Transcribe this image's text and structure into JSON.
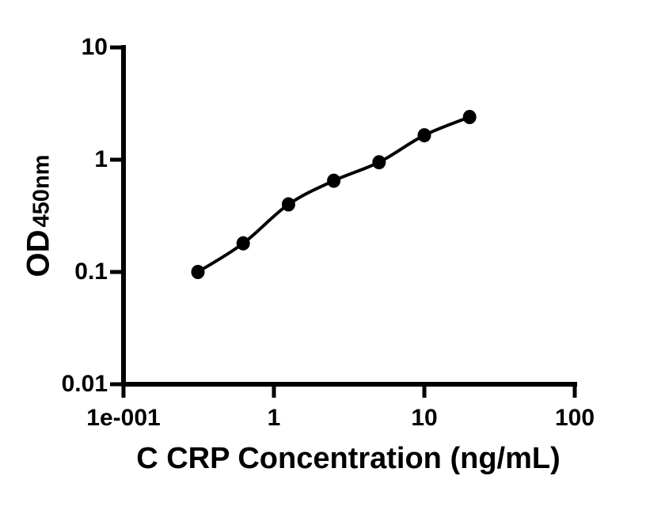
{
  "figure": {
    "background_color": "#ffffff",
    "foreground_color": "#000000"
  },
  "chart_data": {
    "type": "scatter",
    "title": "",
    "xlabel": "C CRP Concentration (ng/mL)",
    "ylabel_main": "OD",
    "ylabel_sub": "450nm",
    "x_scale": "log10",
    "y_scale": "log10",
    "xlim": [
      0.1,
      100
    ],
    "ylim": [
      0.01,
      10
    ],
    "x_tick_values": [
      0.1,
      1,
      10,
      100
    ],
    "x_tick_labels": [
      "1e-001",
      "1",
      "10",
      "100"
    ],
    "y_tick_values": [
      10,
      1,
      0.1,
      0.01
    ],
    "y_tick_labels": [
      "10",
      "1",
      "0.1",
      "0.01"
    ],
    "grid": false,
    "legend": false,
    "series": [
      {
        "marker": "filled-circle",
        "marker_color": "#000000",
        "line": "smooth-fit-curve",
        "line_color": "#000000",
        "x": [
          0.3125,
          0.625,
          1.25,
          2.5,
          5,
          10,
          20
        ],
        "y": [
          0.1,
          0.18,
          0.4,
          0.65,
          0.95,
          1.65,
          2.4
        ]
      }
    ]
  }
}
